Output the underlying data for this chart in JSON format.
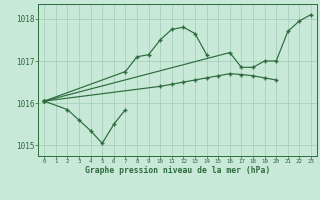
{
  "title": "Graphe pression niveau de la mer (hPa)",
  "bg_color": "#c8e8d8",
  "grid_color": "#a0ccb8",
  "line_color": "#2d6b3c",
  "segments": [
    {
      "x": [
        0,
        2,
        3,
        4,
        5,
        6,
        7
      ],
      "y": [
        1016.05,
        1015.85,
        1015.6,
        1015.35,
        1015.05,
        1015.5,
        1015.85
      ]
    },
    {
      "x": [
        0,
        7,
        8,
        9,
        10,
        11,
        12,
        13,
        14
      ],
      "y": [
        1016.05,
        1016.75,
        1017.1,
        1017.15,
        1017.5,
        1017.75,
        1017.8,
        1017.65,
        1017.15
      ]
    },
    {
      "x": [
        0,
        10,
        11,
        12,
        13,
        14,
        15,
        16,
        17,
        18,
        19,
        20
      ],
      "y": [
        1016.05,
        1016.4,
        1016.45,
        1016.5,
        1016.55,
        1016.6,
        1016.65,
        1016.7,
        1016.68,
        1016.65,
        1016.6,
        1016.55
      ]
    },
    {
      "x": [
        0,
        16,
        17,
        18,
        19,
        20,
        21,
        22,
        23
      ],
      "y": [
        1016.05,
        1017.2,
        1016.85,
        1016.85,
        1017.0,
        1017.0,
        1017.7,
        1017.95,
        1018.1
      ]
    }
  ],
  "ylim": [
    1014.75,
    1018.35
  ],
  "yticks": [
    1015,
    1016,
    1017,
    1018
  ],
  "xticks": [
    0,
    1,
    2,
    3,
    4,
    5,
    6,
    7,
    8,
    9,
    10,
    11,
    12,
    13,
    14,
    15,
    16,
    17,
    18,
    19,
    20,
    21,
    22,
    23
  ],
  "xlim": [
    -0.5,
    23.5
  ]
}
